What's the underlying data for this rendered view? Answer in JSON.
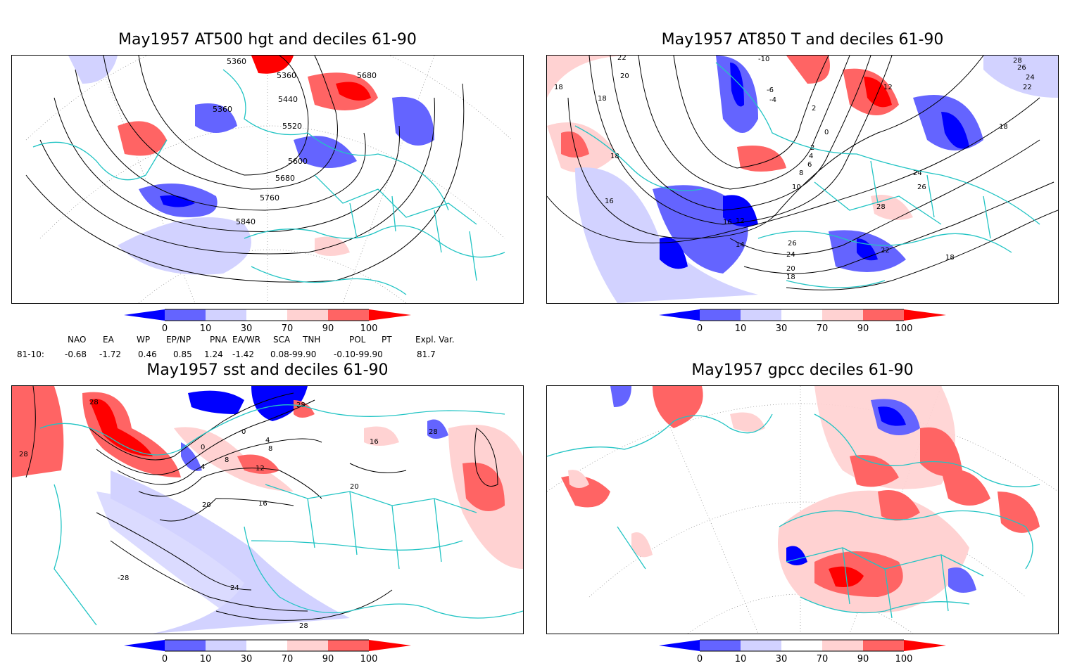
{
  "panels": {
    "p1": {
      "title": "May1957 AT500 hgt and deciles 61-90",
      "contour_labels": [
        "5360",
        "5360",
        "5680",
        "5440",
        "5360",
        "5520",
        "5600",
        "5680",
        "5760",
        "5840"
      ]
    },
    "p2": {
      "title": "May1957 AT850 T and deciles 61-90",
      "contour_labels": [
        "22",
        "20",
        "18",
        "18",
        "18",
        "16",
        "16",
        "12",
        "14",
        "10",
        "8",
        "6",
        "4",
        "2",
        "0",
        "12",
        "26",
        "24",
        "28",
        "26",
        "24",
        "22",
        "20",
        "18",
        "18",
        "-10",
        "-6",
        "-4",
        "2",
        "28",
        "26",
        "24",
        "22",
        "18"
      ]
    },
    "p3": {
      "title": "May1957 sst and deciles 61-90",
      "contour_labels": [
        "28",
        "28",
        "28",
        "0",
        "4",
        "8",
        "12",
        "16",
        "20",
        "24",
        "28",
        "-28",
        "0",
        "4",
        "8",
        "16",
        "20",
        "28"
      ]
    },
    "p4": {
      "title": "May1957 gpcc deciles 61-90"
    }
  },
  "colorbar": {
    "ticks": [
      "0",
      "10",
      "30",
      "70",
      "90",
      "100"
    ],
    "colors": [
      "#0000ff",
      "#6464ff",
      "#d2d2ff",
      "#ffffff",
      "#ffd2d2",
      "#ff6464",
      "#ff0000"
    ]
  },
  "indices": {
    "headers": [
      "NAO",
      "EA",
      "WP",
      "EP/NP",
      "PNA",
      "EA/WR",
      "SCA",
      "TNH",
      "POL",
      "PT",
      "Expl. Var."
    ],
    "row_label": "81-10:",
    "values": [
      "-0.68",
      "-1.72",
      "0.46",
      "0.85",
      "1.24",
      "-1.42",
      "0.08-99.90",
      "-0.10-99.90",
      "81.7"
    ]
  },
  "style": {
    "coast_color": "#22c4c4",
    "blue_dark": "#0000ff",
    "blue_mid": "#6464ff",
    "blue_light": "#d2d2ff",
    "red_light": "#ffd2d2",
    "red_mid": "#ff6464",
    "red_dark": "#ff0000"
  }
}
